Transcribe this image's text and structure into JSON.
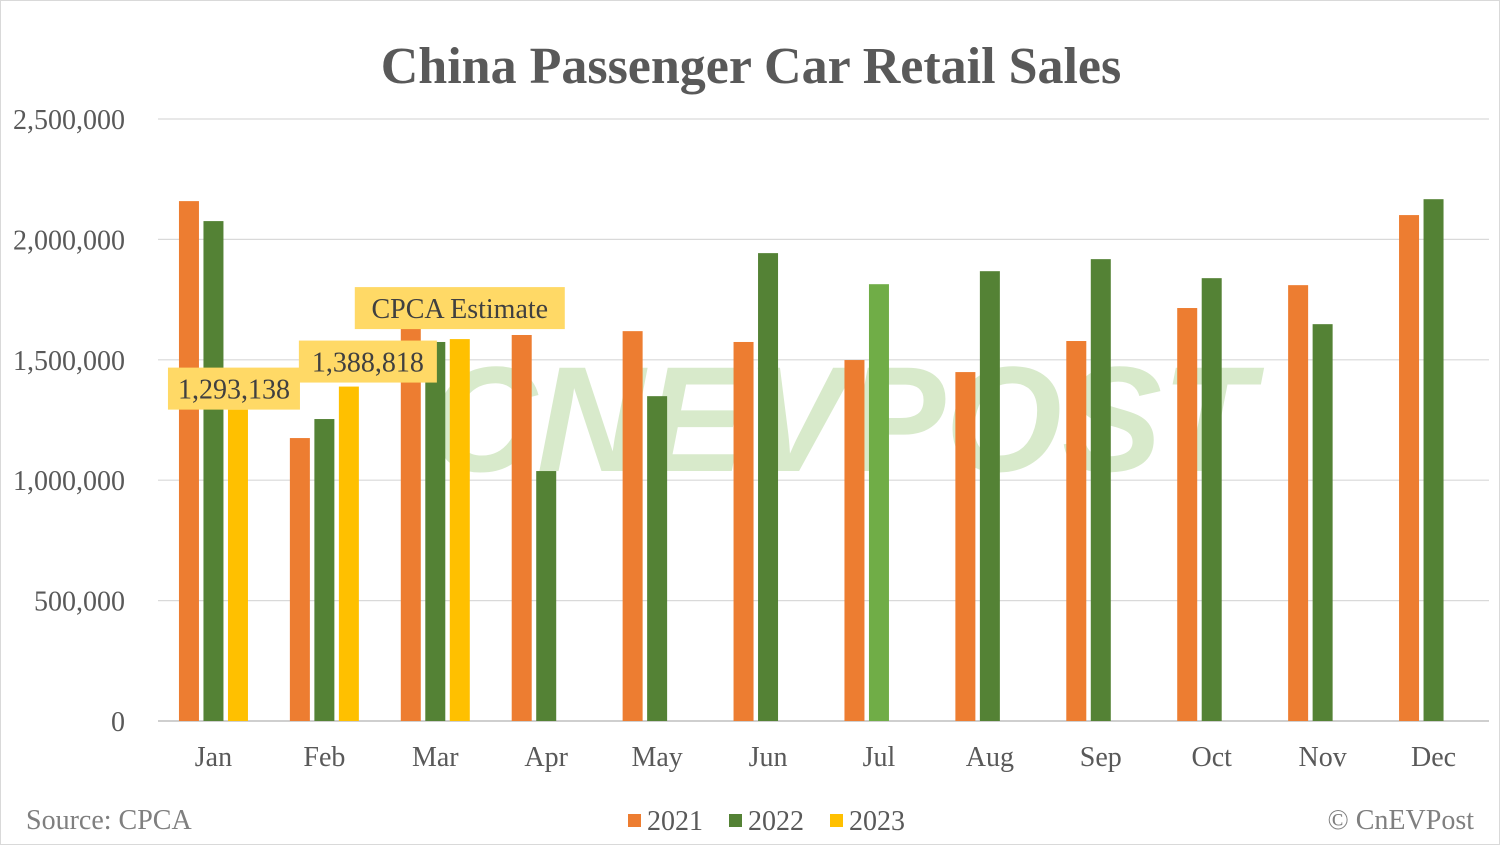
{
  "chart_data": {
    "type": "bar",
    "title": "China Passenger Car Retail Sales",
    "categories": [
      "Jan",
      "Feb",
      "Mar",
      "Apr",
      "May",
      "Jun",
      "Jul",
      "Aug",
      "Sep",
      "Oct",
      "Nov",
      "Dec"
    ],
    "series": [
      {
        "name": "2021",
        "color": "#ed7d31",
        "values": [
          2159000,
          1175000,
          1628000,
          1603000,
          1619000,
          1574000,
          1499000,
          1449000,
          1578000,
          1715000,
          1810000,
          2101000
        ]
      },
      {
        "name": "2022",
        "color": "#548235",
        "highlight_color": "#70ad47",
        "highlight_index": 6,
        "values": [
          2076000,
          1254000,
          1574000,
          1038000,
          1349000,
          1943000,
          1814000,
          1868000,
          1918000,
          1839000,
          1648000,
          2167000
        ]
      },
      {
        "name": "2023",
        "color": "#ffc000",
        "values": [
          1293138,
          1388818,
          1586000,
          null,
          null,
          null,
          null,
          null,
          null,
          null,
          null,
          null
        ]
      }
    ],
    "ylim": [
      0,
      2500000
    ],
    "yticks": [
      "0",
      "500,000",
      "1,000,000",
      "1,500,000",
      "2,000,000",
      "2,500,000"
    ],
    "ytick_values": [
      0,
      500000,
      1000000,
      1500000,
      2000000,
      2500000
    ],
    "grid": true,
    "legend_position": "bottom",
    "annotations": [
      {
        "text": "1,293,138",
        "series": "2023",
        "category": "Jan"
      },
      {
        "text": "1,388,818",
        "series": "2023",
        "category": "Feb"
      },
      {
        "text": "CPCA Estimate",
        "series": "2023",
        "category": "Mar"
      }
    ],
    "annotation_color": "#ffd966"
  },
  "footer": {
    "source": "Source: CPCA",
    "copyright": "© CnEVPost"
  },
  "watermark": "CNEVPOST"
}
